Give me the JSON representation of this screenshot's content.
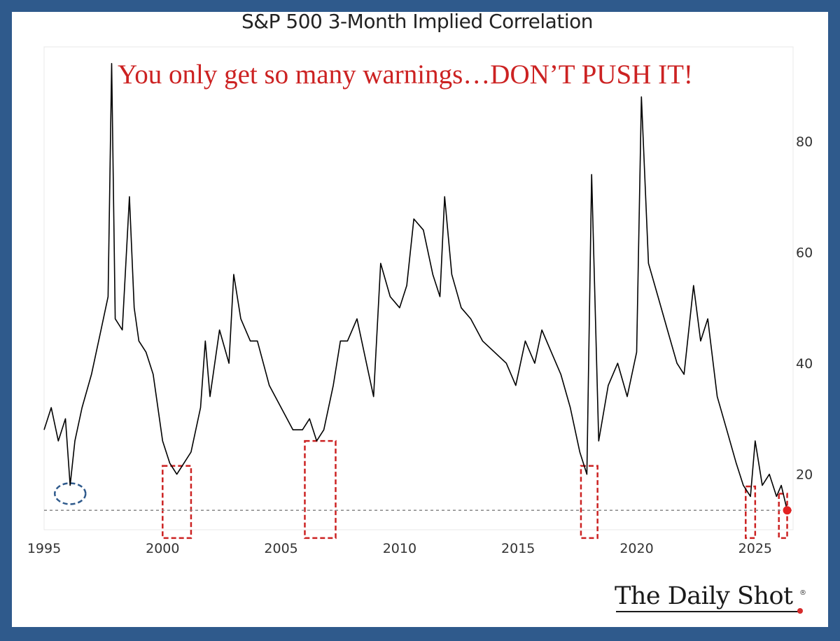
{
  "chart_data": {
    "type": "line",
    "title": "S&P 500 3-Month Implied Correlation",
    "annotation": "You only get so many warnings…DON’T PUSH IT!",
    "xlabel": "",
    "ylabel": "",
    "x_ticks": [
      "1995",
      "2000",
      "2005",
      "2010",
      "2015",
      "2020",
      "2025"
    ],
    "y_ticks": [
      "20",
      "40",
      "60",
      "80"
    ],
    "xlim": [
      1995,
      2026.6
    ],
    "ylim": [
      10,
      97
    ],
    "threshold": 13.5,
    "latest": {
      "x": 2026.35,
      "y": 13.5
    },
    "series": [
      {
        "x": [
          1995.0,
          1995.3,
          1995.6,
          1995.9,
          1996.1,
          1996.3,
          1996.6,
          1997.0,
          1997.4,
          1997.7,
          1997.85,
          1998.0,
          1998.3,
          1998.6,
          1998.8,
          1999.0,
          1999.3,
          1999.6,
          2000.0,
          2000.3,
          2000.6,
          2000.9,
          2001.2,
          2001.6,
          2001.8,
          2002.0,
          2002.4,
          2002.8,
          2003.0,
          2003.3,
          2003.7,
          2004.0,
          2004.5,
          2005.0,
          2005.5,
          2005.9,
          2006.2,
          2006.5,
          2006.8,
          2007.2,
          2007.5,
          2007.8,
          2008.2,
          2008.6,
          2008.9,
          2009.2,
          2009.6,
          2010.0,
          2010.3,
          2010.6,
          2011.0,
          2011.4,
          2011.7,
          2011.9,
          2012.2,
          2012.6,
          2013.0,
          2013.5,
          2014.0,
          2014.5,
          2014.9,
          2015.3,
          2015.7,
          2016.0,
          2016.4,
          2016.8,
          2017.2,
          2017.6,
          2017.9,
          2018.1,
          2018.4,
          2018.8,
          2019.2,
          2019.6,
          2020.0,
          2020.2,
          2020.5,
          2020.9,
          2021.3,
          2021.7,
          2022.0,
          2022.4,
          2022.7,
          2023.0,
          2023.4,
          2023.8,
          2024.2,
          2024.5,
          2024.8,
          2025.0,
          2025.3,
          2025.6,
          2025.9,
          2026.1,
          2026.35
        ],
        "y": [
          28,
          32,
          26,
          30,
          18,
          26,
          32,
          38,
          46,
          52,
          94,
          48,
          46,
          70,
          50,
          44,
          42,
          38,
          26,
          22,
          20,
          22,
          24,
          32,
          44,
          34,
          46,
          40,
          56,
          48,
          44,
          44,
          36,
          32,
          28,
          28,
          30,
          26,
          28,
          36,
          44,
          44,
          48,
          40,
          34,
          58,
          52,
          50,
          54,
          66,
          64,
          56,
          52,
          70,
          56,
          50,
          48,
          44,
          42,
          40,
          36,
          44,
          40,
          46,
          42,
          38,
          32,
          24,
          20,
          74,
          26,
          36,
          40,
          34,
          42,
          88,
          58,
          52,
          46,
          40,
          38,
          54,
          44,
          48,
          34,
          28,
          22,
          18,
          16,
          26,
          18,
          20,
          16,
          18,
          13.5
        ]
      }
    ],
    "highlights": [
      {
        "shape": "ellipse",
        "x": 1996.1,
        "y": 16.5,
        "color": "#2f5a8c"
      },
      {
        "shape": "rect",
        "x": [
          2000.0,
          2001.2
        ],
        "y": [
          8.5,
          21.5
        ],
        "color": "#cc2222"
      },
      {
        "shape": "rect",
        "x": [
          2006.0,
          2007.3
        ],
        "y": [
          8.5,
          26
        ],
        "color": "#cc2222"
      },
      {
        "shape": "rect",
        "x": [
          2017.65,
          2018.35
        ],
        "y": [
          8.5,
          21.5
        ],
        "color": "#cc2222"
      },
      {
        "shape": "rect",
        "x": [
          2024.6,
          2025.0
        ],
        "y": [
          8.5,
          17.8
        ],
        "color": "#cc2222"
      },
      {
        "shape": "rect",
        "x": [
          2026.0,
          2026.35
        ],
        "y": [
          8.5,
          16.5
        ],
        "color": "#cc2222"
      }
    ],
    "colors": {
      "line": "#000000",
      "threshold": "#888888",
      "highlight": "#cc2222",
      "latest_dot": "#e32222"
    }
  },
  "brand": {
    "name": "The Daily Shot",
    "mark": "®"
  }
}
